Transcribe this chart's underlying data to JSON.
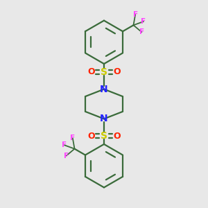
{
  "background_color": "#e8e8e8",
  "bond_color": "#3a6b3a",
  "sulfur_color": "#cccc00",
  "oxygen_color": "#ff2200",
  "nitrogen_color": "#2222ff",
  "fluorine_color": "#ff44ff",
  "figsize": [
    3.0,
    3.0
  ],
  "dpi": 100,
  "xlim": [
    0,
    10
  ],
  "ylim": [
    0,
    10
  ]
}
